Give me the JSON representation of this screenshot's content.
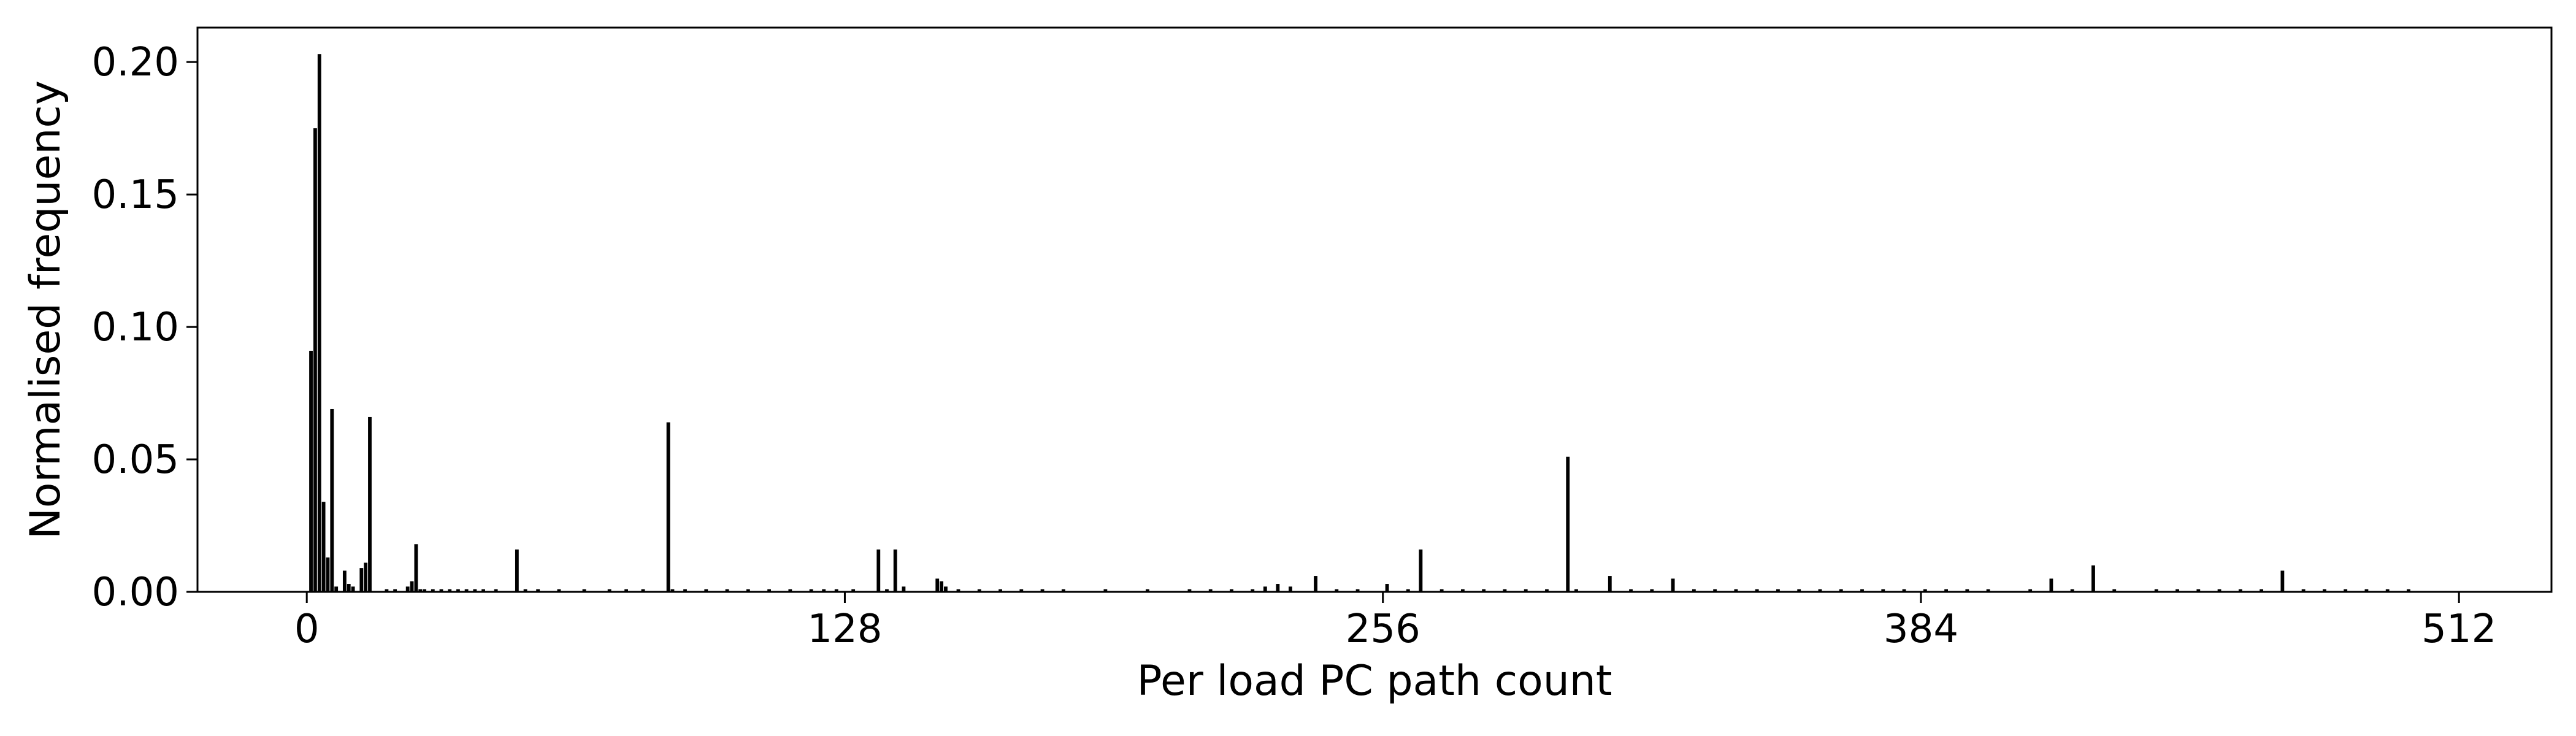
{
  "chart_data": {
    "type": "bar",
    "title": "",
    "xlabel": "Per load PC path count",
    "ylabel": "Normalised frequency",
    "xlim": [
      -26,
      534
    ],
    "ylim": [
      0,
      0.213
    ],
    "xticks": [
      0,
      128,
      256,
      384,
      512
    ],
    "yticks": [
      0.0,
      0.05,
      0.1,
      0.15,
      0.2
    ],
    "ytick_labels": [
      "0.00",
      "0.05",
      "0.10",
      "0.15",
      "0.20"
    ],
    "grid": false,
    "bar_color": "#000000",
    "x": [
      1,
      2,
      3,
      4,
      5,
      6,
      7,
      9,
      10,
      11,
      13,
      14,
      15,
      19,
      21,
      24,
      25,
      26,
      27,
      28,
      30,
      32,
      34,
      36,
      38,
      40,
      42,
      45,
      50,
      52,
      55,
      60,
      66,
      72,
      76,
      80,
      86,
      87,
      90,
      95,
      100,
      105,
      110,
      115,
      120,
      123,
      126,
      130,
      136,
      138,
      140,
      142,
      150,
      151,
      152,
      155,
      160,
      165,
      170,
      175,
      180,
      190,
      200,
      210,
      215,
      220,
      225,
      228,
      231,
      234,
      240,
      245,
      250,
      257,
      262,
      265,
      270,
      275,
      280,
      285,
      290,
      295,
      300,
      302,
      310,
      315,
      320,
      325,
      330,
      335,
      340,
      345,
      350,
      355,
      360,
      365,
      370,
      375,
      380,
      385,
      390,
      395,
      400,
      410,
      415,
      420,
      425,
      430,
      440,
      445,
      450,
      455,
      460,
      465,
      470,
      475,
      480,
      485,
      490,
      495,
      500
    ],
    "values": [
      0.091,
      0.175,
      0.203,
      0.034,
      0.013,
      0.069,
      0.002,
      0.008,
      0.003,
      0.002,
      0.009,
      0.011,
      0.066,
      0.001,
      0.001,
      0.002,
      0.004,
      0.018,
      0.001,
      0.001,
      0.001,
      0.001,
      0.001,
      0.001,
      0.001,
      0.001,
      0.001,
      0.001,
      0.016,
      0.001,
      0.001,
      0.001,
      0.001,
      0.001,
      0.001,
      0.001,
      0.064,
      0.001,
      0.001,
      0.001,
      0.001,
      0.001,
      0.001,
      0.001,
      0.001,
      0.001,
      0.001,
      0.001,
      0.016,
      0.001,
      0.016,
      0.002,
      0.005,
      0.004,
      0.002,
      0.001,
      0.001,
      0.001,
      0.001,
      0.001,
      0.001,
      0.001,
      0.001,
      0.001,
      0.001,
      0.001,
      0.001,
      0.002,
      0.003,
      0.002,
      0.006,
      0.001,
      0.001,
      0.003,
      0.001,
      0.016,
      0.001,
      0.001,
      0.001,
      0.001,
      0.001,
      0.001,
      0.051,
      0.001,
      0.006,
      0.001,
      0.001,
      0.005,
      0.001,
      0.001,
      0.001,
      0.001,
      0.001,
      0.001,
      0.001,
      0.001,
      0.001,
      0.001,
      0.001,
      0.001,
      0.001,
      0.001,
      0.001,
      0.001,
      0.005,
      0.001,
      0.01,
      0.001,
      0.001,
      0.001,
      0.001,
      0.001,
      0.001,
      0.001,
      0.008,
      0.001,
      0.001,
      0.001,
      0.001,
      0.001,
      0.001
    ]
  }
}
